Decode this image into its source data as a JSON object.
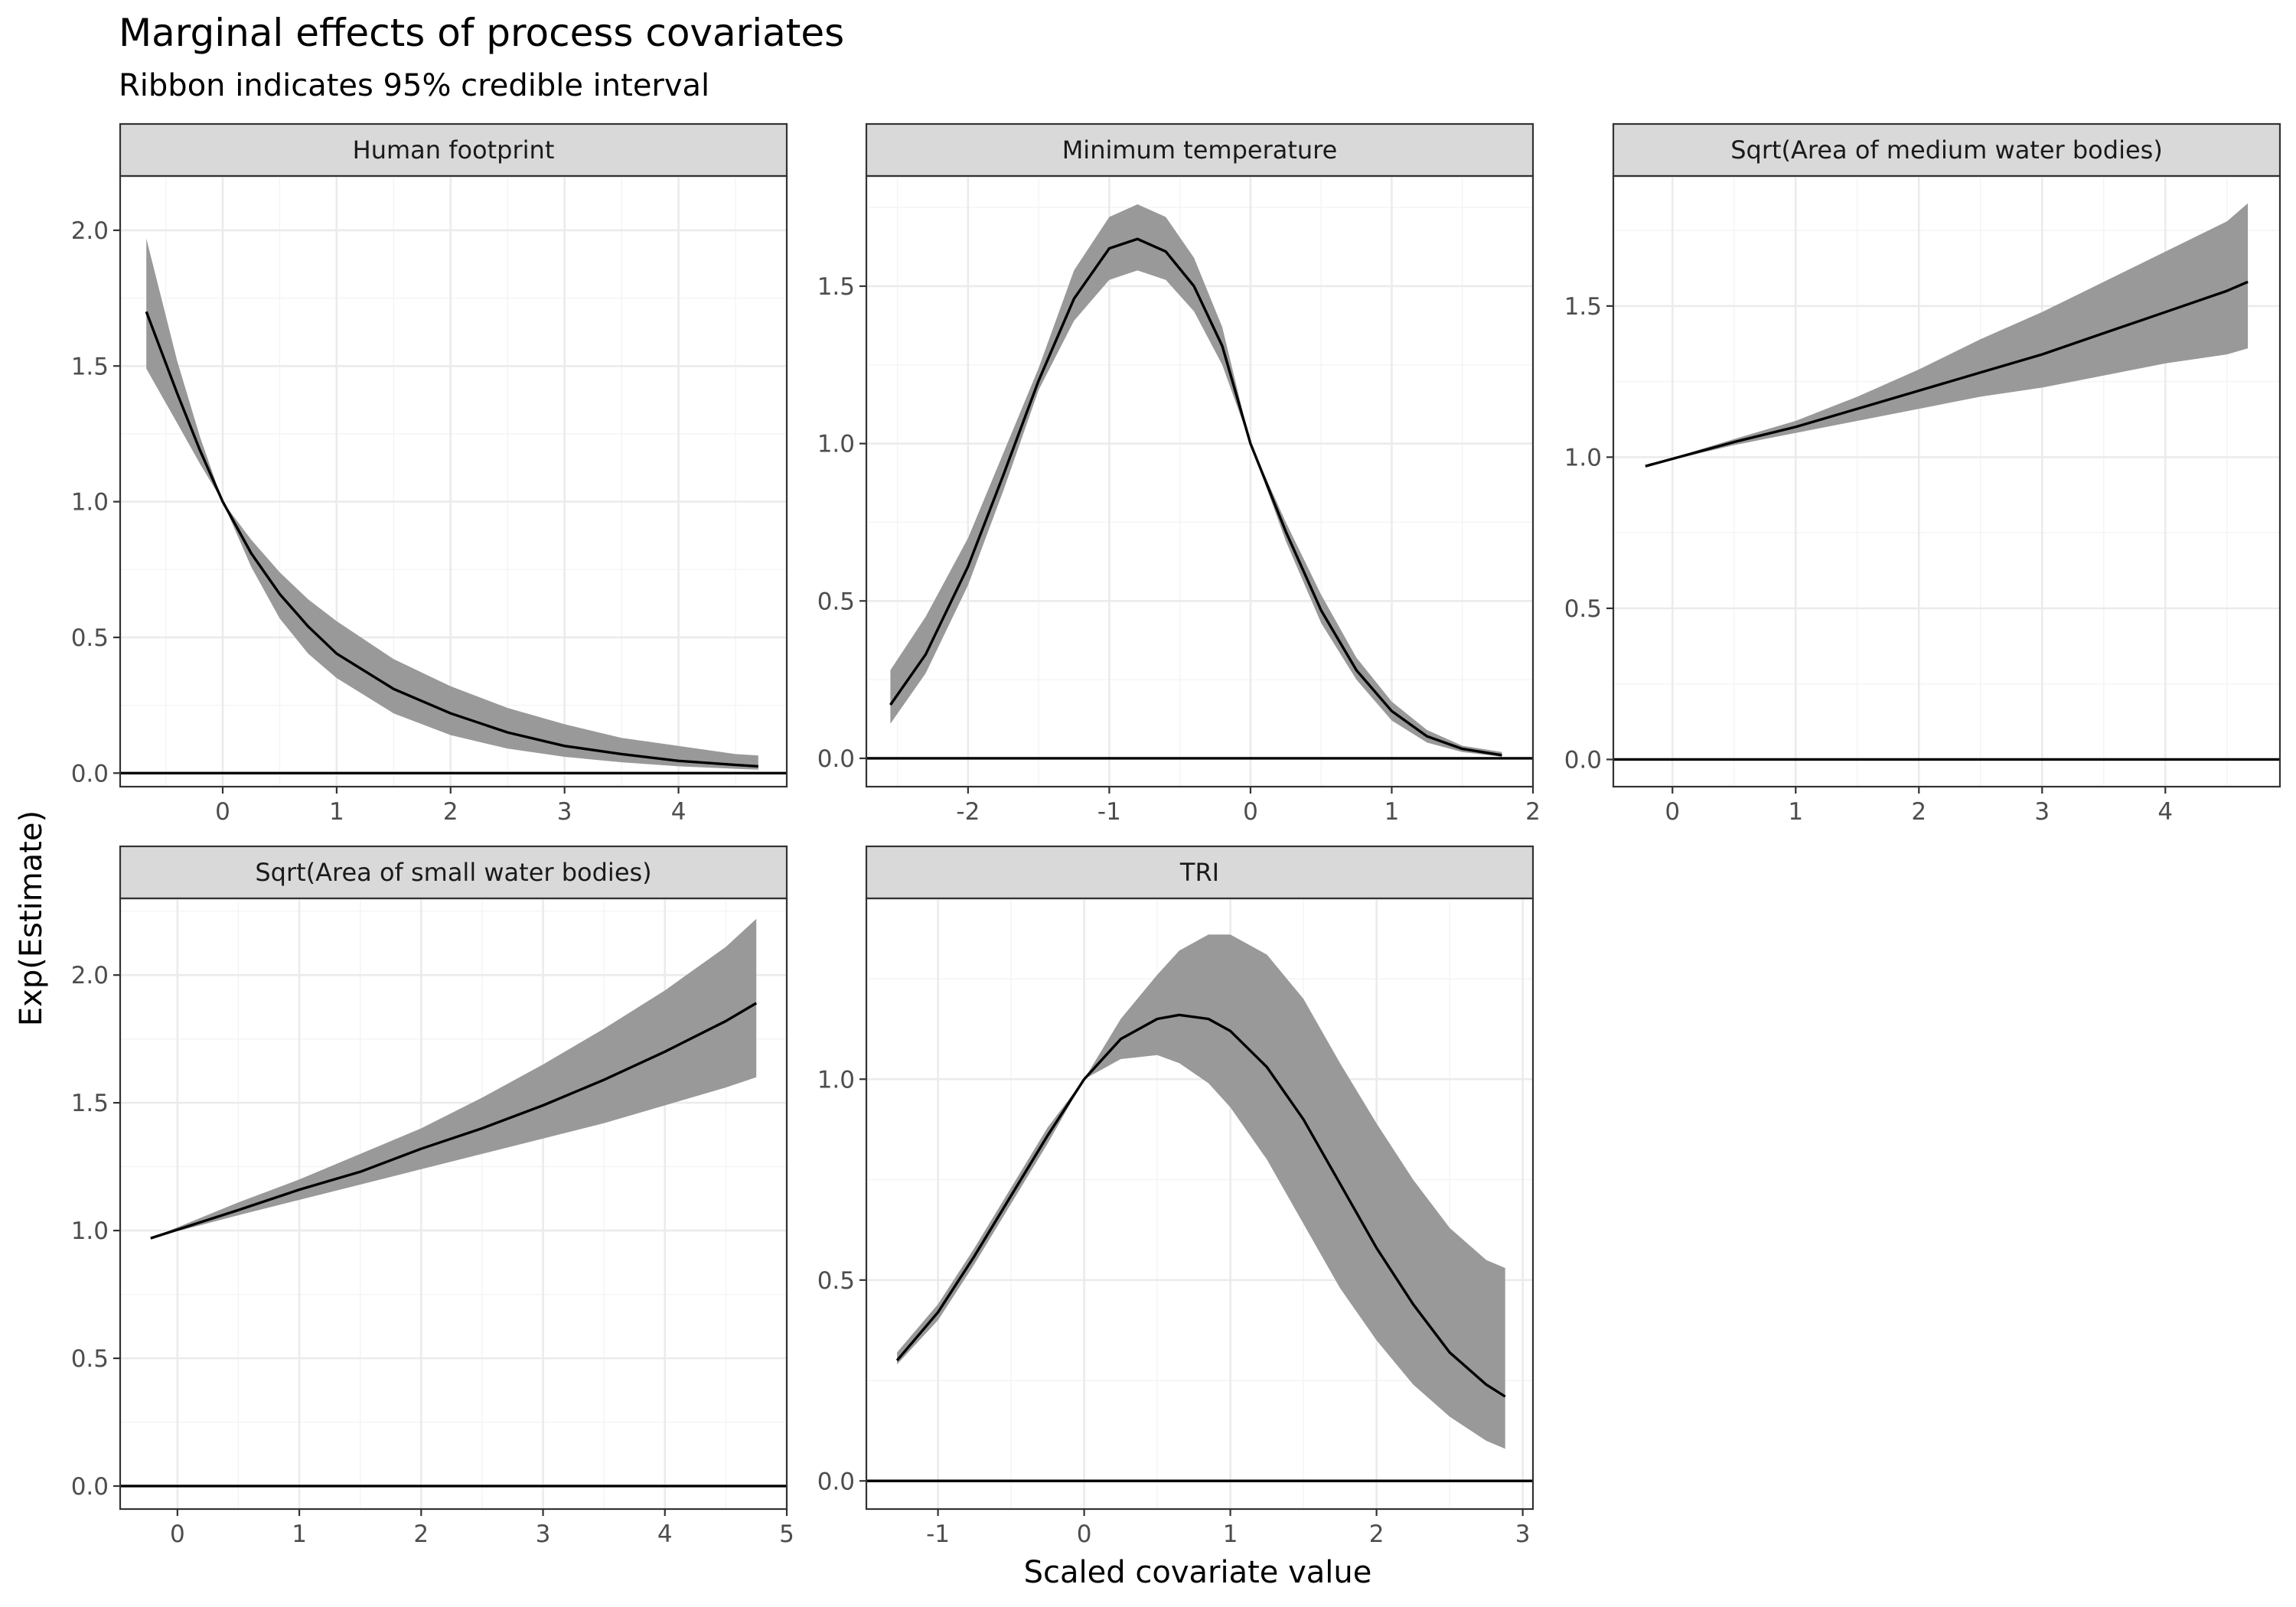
{
  "figure": {
    "title": "Marginal effects of process covariates",
    "subtitle": "Ribbon indicates 95% credible interval",
    "xlabel": "Scaled covariate value",
    "ylabel": "Exp(Estimate)"
  },
  "chart_data": [
    {
      "type": "area",
      "panel": "Human footprint",
      "xlim": [
        -0.9,
        4.95
      ],
      "ylim": [
        -0.05,
        2.2
      ],
      "x_ticks": [
        0,
        1,
        2,
        3,
        4
      ],
      "y_ticks": [
        0.0,
        0.5,
        1.0,
        1.5,
        2.0
      ],
      "x_tick_labels": [
        "0",
        "1",
        "2",
        "3",
        "4"
      ],
      "y_tick_labels": [
        "0.0",
        "0.5",
        "1.0",
        "1.5",
        "2.0"
      ],
      "hline": 0,
      "x": [
        -0.67,
        -0.4,
        -0.2,
        0.0,
        0.25,
        0.5,
        0.75,
        1.0,
        1.5,
        2.0,
        2.5,
        3.0,
        3.5,
        4.0,
        4.5,
        4.7
      ],
      "y": [
        1.7,
        1.4,
        1.19,
        1.0,
        0.81,
        0.66,
        0.54,
        0.44,
        0.31,
        0.22,
        0.15,
        0.1,
        0.07,
        0.045,
        0.03,
        0.025
      ],
      "lower": [
        1.49,
        1.29,
        1.14,
        1.0,
        0.76,
        0.57,
        0.44,
        0.35,
        0.22,
        0.14,
        0.09,
        0.06,
        0.04,
        0.025,
        0.016,
        0.013
      ],
      "upper": [
        1.97,
        1.52,
        1.24,
        1.0,
        0.86,
        0.74,
        0.64,
        0.56,
        0.42,
        0.32,
        0.24,
        0.18,
        0.13,
        0.1,
        0.07,
        0.065
      ]
    },
    {
      "type": "area",
      "panel": "Minimum temperature",
      "xlim": [
        -2.72,
        2.0
      ],
      "ylim": [
        -0.09,
        1.85
      ],
      "x_ticks": [
        -2,
        -1,
        0,
        1,
        2
      ],
      "y_ticks": [
        0.0,
        0.5,
        1.0,
        1.5
      ],
      "x_tick_labels": [
        "-2",
        "-1",
        "0",
        "1",
        "2"
      ],
      "y_tick_labels": [
        "0.0",
        "0.5",
        "1.0",
        "1.5"
      ],
      "hline": 0,
      "x": [
        -2.55,
        -2.3,
        -2.0,
        -1.75,
        -1.5,
        -1.25,
        -1.0,
        -0.8,
        -0.6,
        -0.4,
        -0.2,
        0.0,
        0.25,
        0.5,
        0.75,
        1.0,
        1.25,
        1.5,
        1.78
      ],
      "y": [
        0.17,
        0.33,
        0.61,
        0.9,
        1.2,
        1.46,
        1.62,
        1.65,
        1.61,
        1.5,
        1.31,
        1.0,
        0.72,
        0.47,
        0.28,
        0.15,
        0.07,
        0.03,
        0.01
      ],
      "lower": [
        0.11,
        0.27,
        0.55,
        0.85,
        1.17,
        1.39,
        1.52,
        1.55,
        1.52,
        1.42,
        1.25,
        1.0,
        0.69,
        0.43,
        0.25,
        0.12,
        0.05,
        0.02,
        0.005
      ],
      "upper": [
        0.28,
        0.45,
        0.7,
        0.97,
        1.24,
        1.55,
        1.72,
        1.76,
        1.72,
        1.59,
        1.37,
        1.0,
        0.75,
        0.52,
        0.32,
        0.18,
        0.09,
        0.04,
        0.02
      ]
    },
    {
      "type": "area",
      "panel": "Sqrt(Area of medium water bodies)",
      "xlim": [
        -0.48,
        4.93
      ],
      "ylim": [
        -0.09,
        1.93
      ],
      "x_ticks": [
        0,
        1,
        2,
        3,
        4
      ],
      "y_ticks": [
        0.0,
        0.5,
        1.0,
        1.5
      ],
      "x_tick_labels": [
        "0",
        "1",
        "2",
        "3",
        "4"
      ],
      "y_tick_labels": [
        "0.0",
        "0.5",
        "1.0",
        "1.5"
      ],
      "hline": 0,
      "x": [
        -0.22,
        0.5,
        1.0,
        1.5,
        2.0,
        2.5,
        3.0,
        3.5,
        4.0,
        4.5,
        4.67
      ],
      "y": [
        0.97,
        1.05,
        1.1,
        1.16,
        1.22,
        1.28,
        1.34,
        1.41,
        1.48,
        1.55,
        1.58
      ],
      "lower": [
        0.97,
        1.04,
        1.08,
        1.12,
        1.16,
        1.2,
        1.23,
        1.27,
        1.31,
        1.34,
        1.36
      ],
      "upper": [
        0.97,
        1.06,
        1.12,
        1.2,
        1.29,
        1.39,
        1.48,
        1.58,
        1.68,
        1.78,
        1.84
      ]
    },
    {
      "type": "area",
      "panel": "Sqrt(Area of small water bodies)",
      "xlim": [
        -0.47,
        5.0
      ],
      "ylim": [
        -0.09,
        2.3
      ],
      "x_ticks": [
        0,
        1,
        2,
        3,
        4,
        5
      ],
      "y_ticks": [
        0.0,
        0.5,
        1.0,
        1.5,
        2.0
      ],
      "x_tick_labels": [
        "0",
        "1",
        "2",
        "3",
        "4",
        "5"
      ],
      "y_tick_labels": [
        "0.0",
        "0.5",
        "1.0",
        "1.5",
        "2.0"
      ],
      "hline": 0,
      "x": [
        -0.22,
        0.5,
        1.0,
        1.5,
        2.0,
        2.5,
        3.0,
        3.5,
        4.0,
        4.5,
        4.75
      ],
      "y": [
        0.97,
        1.08,
        1.16,
        1.23,
        1.32,
        1.4,
        1.49,
        1.59,
        1.7,
        1.82,
        1.89
      ],
      "lower": [
        0.97,
        1.06,
        1.12,
        1.18,
        1.24,
        1.3,
        1.36,
        1.42,
        1.49,
        1.56,
        1.6
      ],
      "upper": [
        0.97,
        1.11,
        1.2,
        1.3,
        1.4,
        1.52,
        1.65,
        1.79,
        1.94,
        2.11,
        2.22
      ]
    },
    {
      "type": "area",
      "panel": "TRI",
      "xlim": [
        -1.49,
        3.07
      ],
      "ylim": [
        -0.07,
        1.45
      ],
      "x_ticks": [
        -1,
        0,
        1,
        2,
        3
      ],
      "y_ticks": [
        0.0,
        0.5,
        1.0
      ],
      "x_tick_labels": [
        "-1",
        "0",
        "1",
        "2",
        "3"
      ],
      "y_tick_labels": [
        "0.0",
        "0.5",
        "1.0"
      ],
      "hline": 0,
      "x": [
        -1.28,
        -1.0,
        -0.75,
        -0.5,
        -0.25,
        0.0,
        0.25,
        0.5,
        0.65,
        0.85,
        1.0,
        1.25,
        1.5,
        1.75,
        2.0,
        2.25,
        2.5,
        2.75,
        2.88
      ],
      "y": [
        0.3,
        0.42,
        0.56,
        0.71,
        0.86,
        1.0,
        1.1,
        1.15,
        1.16,
        1.15,
        1.12,
        1.03,
        0.9,
        0.74,
        0.58,
        0.44,
        0.32,
        0.24,
        0.21
      ],
      "lower": [
        0.29,
        0.4,
        0.54,
        0.69,
        0.84,
        1.0,
        1.05,
        1.06,
        1.04,
        0.99,
        0.93,
        0.8,
        0.64,
        0.48,
        0.35,
        0.24,
        0.16,
        0.1,
        0.08
      ],
      "upper": [
        0.32,
        0.44,
        0.58,
        0.73,
        0.88,
        1.0,
        1.15,
        1.26,
        1.32,
        1.36,
        1.36,
        1.31,
        1.2,
        1.04,
        0.89,
        0.75,
        0.63,
        0.55,
        0.53
      ]
    }
  ]
}
